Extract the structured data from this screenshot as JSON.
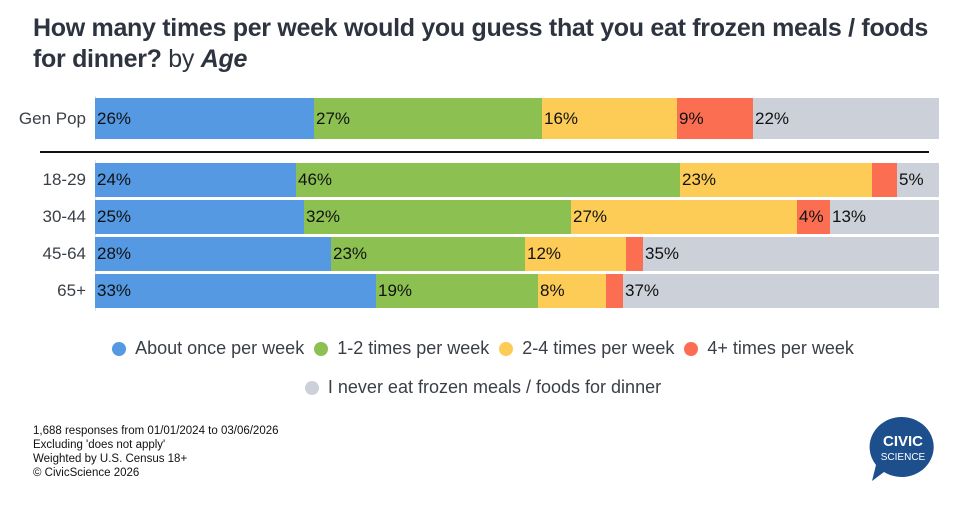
{
  "chart_data": {
    "type": "bar",
    "orientation": "horizontal",
    "stacked": true,
    "title": "How many times per week would you guess that you eat frozen meals / foods for dinner?",
    "title_suffix_by": "by",
    "title_suffix_group": "Age",
    "categories": [
      "Gen Pop",
      "18-29",
      "30-44",
      "45-64",
      "65+"
    ],
    "series": [
      {
        "name": "About once per week",
        "color": "#5499e2",
        "values": [
          26,
          24,
          25,
          28,
          33
        ],
        "labels": [
          "26%",
          "24%",
          "25%",
          "28%",
          "33%"
        ]
      },
      {
        "name": "1-2 times per week",
        "color": "#8cc152",
        "values": [
          27,
          46,
          32,
          23,
          19
        ],
        "labels": [
          "27%",
          "46%",
          "32%",
          "23%",
          "19%"
        ]
      },
      {
        "name": "2-4 times per week",
        "color": "#fdcc56",
        "values": [
          16,
          23,
          27,
          12,
          8
        ],
        "labels": [
          "16%",
          "23%",
          "27%",
          "12%",
          "8%"
        ]
      },
      {
        "name": "4+ times per week",
        "color": "#fc6e51",
        "values": [
          9,
          3,
          4,
          2,
          2
        ],
        "labels": [
          "9%",
          "",
          "4%",
          "",
          ""
        ]
      },
      {
        "name": "I never eat frozen meals / foods for dinner",
        "color": "#ccd0d9",
        "values": [
          22,
          5,
          13,
          35,
          37
        ],
        "labels": [
          "22%",
          "5%",
          "13%",
          "35%",
          "37%"
        ]
      }
    ],
    "xlim": [
      0,
      100
    ],
    "legend_position": "bottom-center",
    "grid": false
  },
  "footnotes": [
    "1,688 responses from 01/01/2024 to 03/06/2026",
    "Excluding 'does not apply'",
    "Weighted by U.S. Census 18+",
    "© CivicScience 2026"
  ],
  "logo": {
    "line1": "CIVIC",
    "line2": "SCIENCE",
    "color": "#1d4f8c"
  }
}
